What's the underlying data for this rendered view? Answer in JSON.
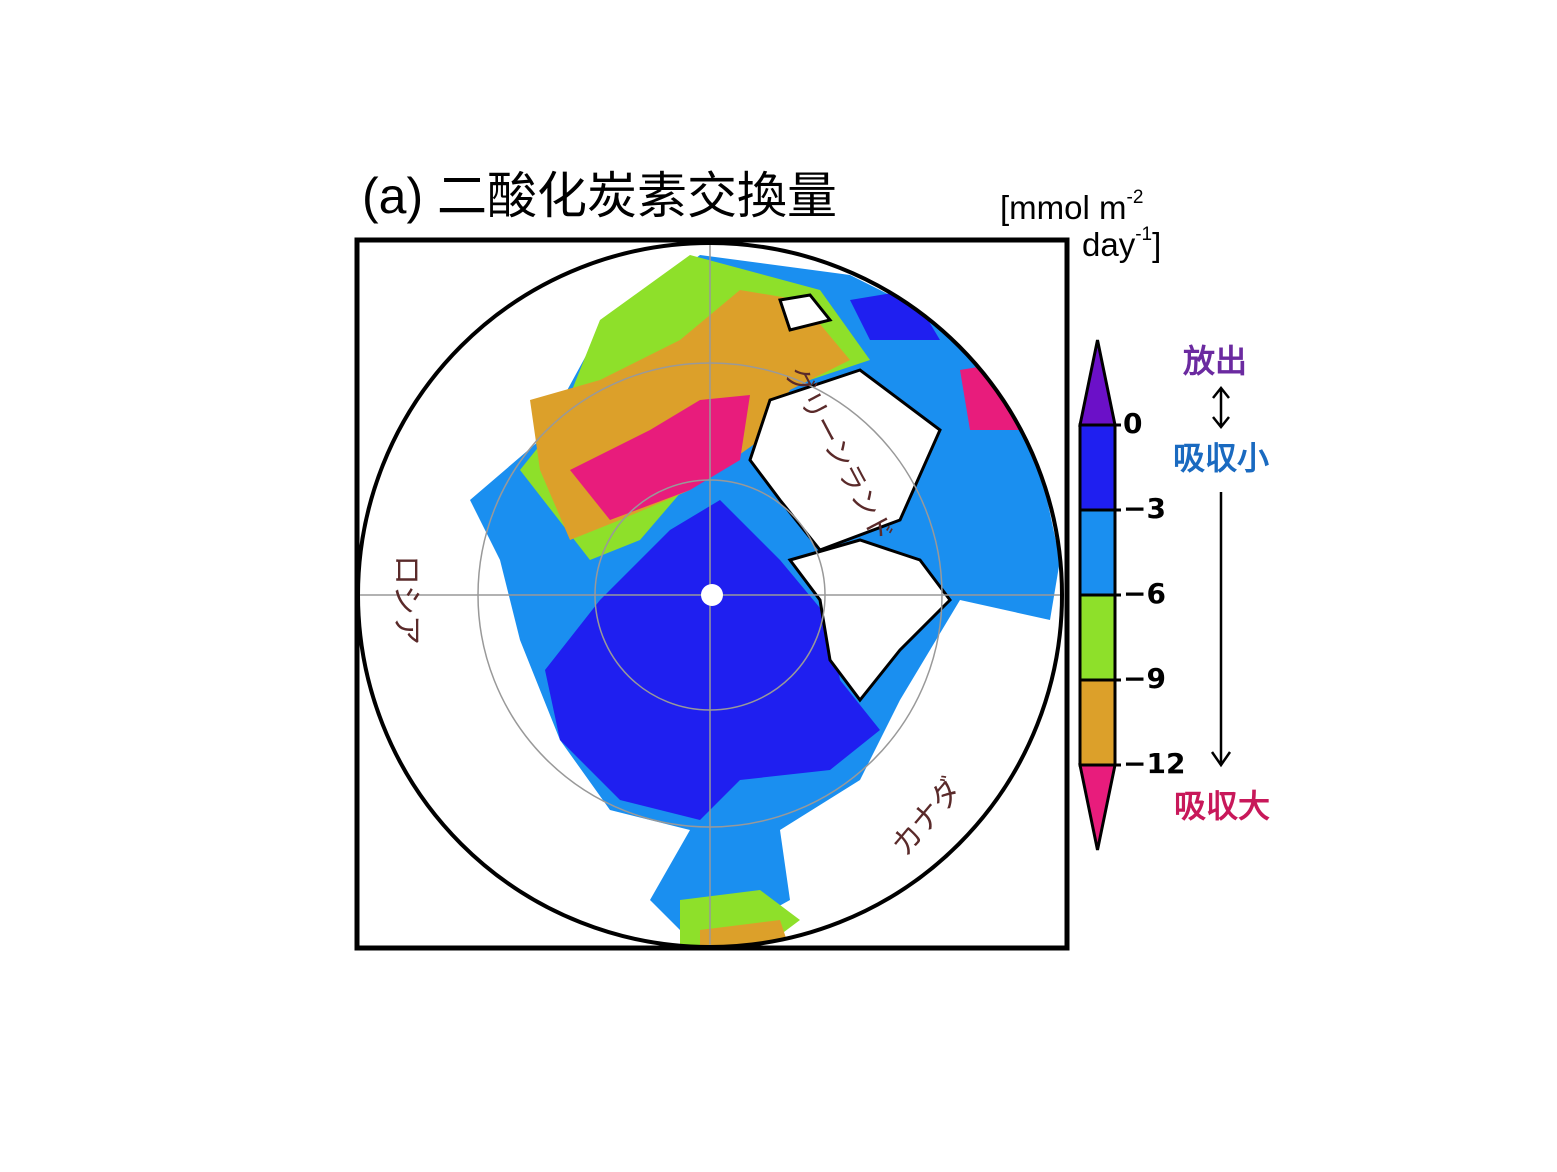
{
  "title": "(a) 二酸化炭素交換量",
  "unit": {
    "line1": "[mmol m",
    "sup1": "-2",
    "line2": "day",
    "sup2": "-1",
    "close": "]"
  },
  "map_labels": {
    "russia": "ロシア",
    "greenland": "グリーンランド",
    "canada": "カナダ"
  },
  "colorbar": {
    "clim": [
      -12,
      0
    ],
    "ticks": [
      0,
      {
        "value": -3,
        "label": "−3"
      },
      {
        "value": -6,
        "label": "−6"
      },
      {
        "value": -9,
        "label": "−9"
      },
      {
        "value": -12,
        "label": "−12"
      }
    ],
    "colors": [
      "#6b10c8",
      "#1f1ff0",
      "#1a8ff0",
      "#8ee02a",
      "#dca02a",
      "#e81c7c"
    ]
  },
  "annotations": {
    "release": "放出",
    "small_uptake": "吸収小",
    "large_uptake": "吸収大"
  }
}
